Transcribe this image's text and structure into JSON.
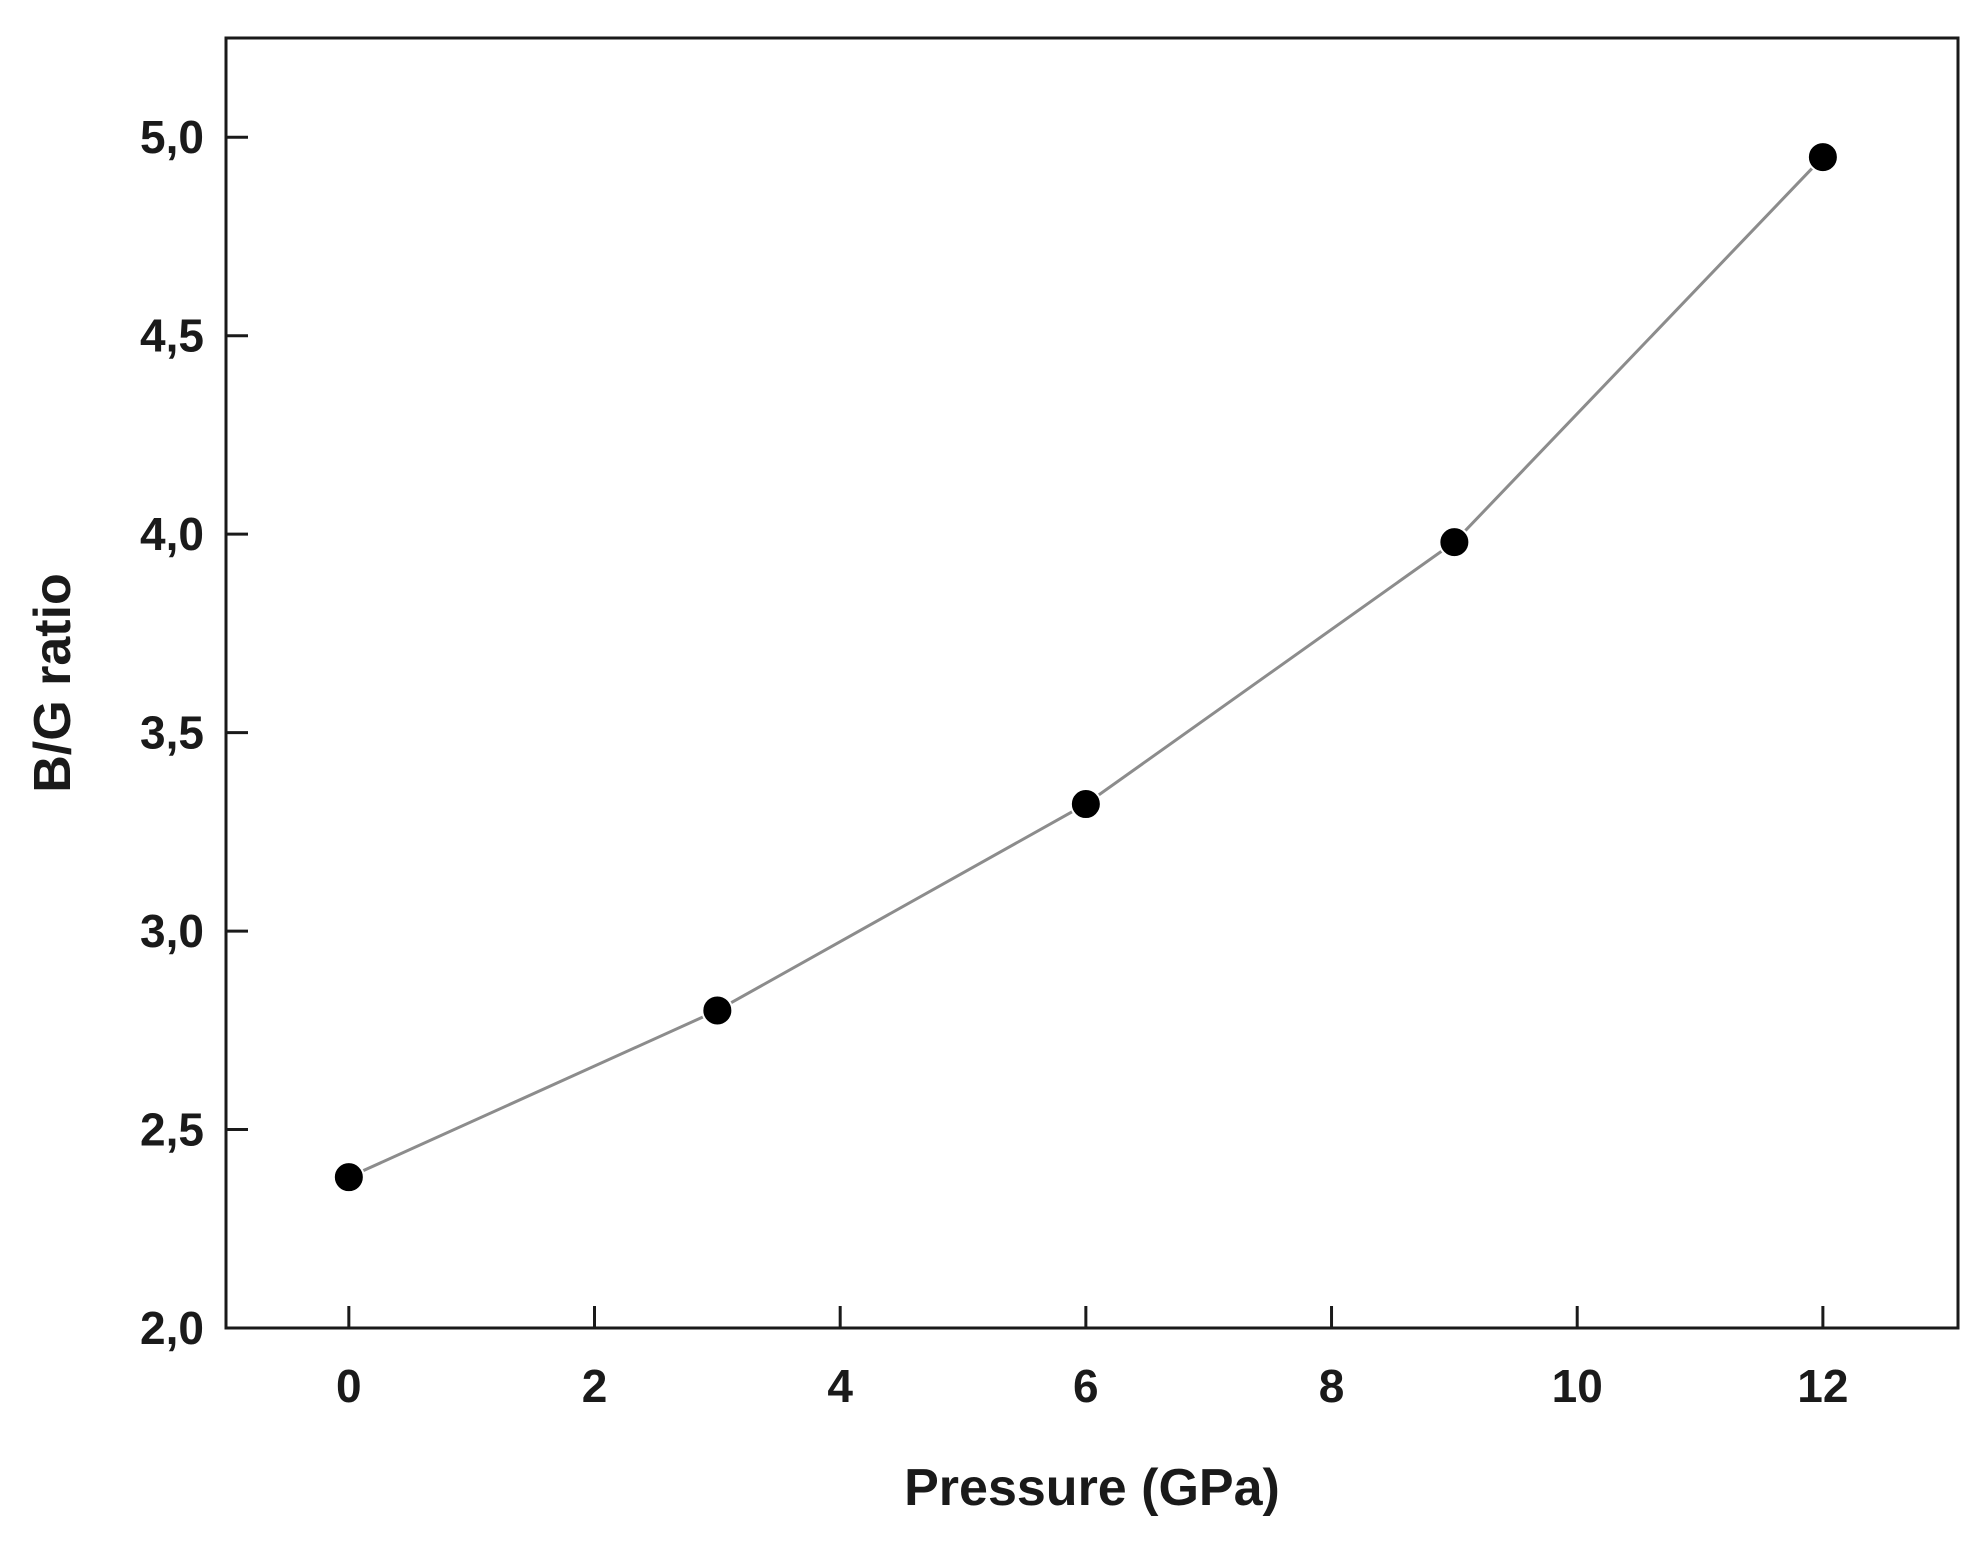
{
  "chart_data": {
    "type": "line",
    "title": "",
    "xlabel": "Pressure (GPa)",
    "ylabel": "B/G ratio",
    "xlim": [
      -1,
      13.1
    ],
    "ylim": [
      2.0,
      5.25
    ],
    "x_ticks": [
      0,
      2,
      4,
      6,
      8,
      10,
      12
    ],
    "x_tick_labels": [
      "0",
      "2",
      "4",
      "6",
      "8",
      "10",
      "12"
    ],
    "y_ticks": [
      2.0,
      2.5,
      3.0,
      3.5,
      4.0,
      4.5,
      5.0
    ],
    "y_tick_labels": [
      "2,0",
      "2,5",
      "3,0",
      "3,5",
      "4,0",
      "4,5",
      "5,0"
    ],
    "grid": false,
    "legend": "none",
    "series": [
      {
        "x": [
          0,
          3,
          6,
          9,
          12
        ],
        "y": [
          2.38,
          2.8,
          3.32,
          3.98,
          4.95
        ],
        "line_color": "#8c8c8c",
        "marker_color": "#000000",
        "marker": "circle"
      }
    ]
  }
}
